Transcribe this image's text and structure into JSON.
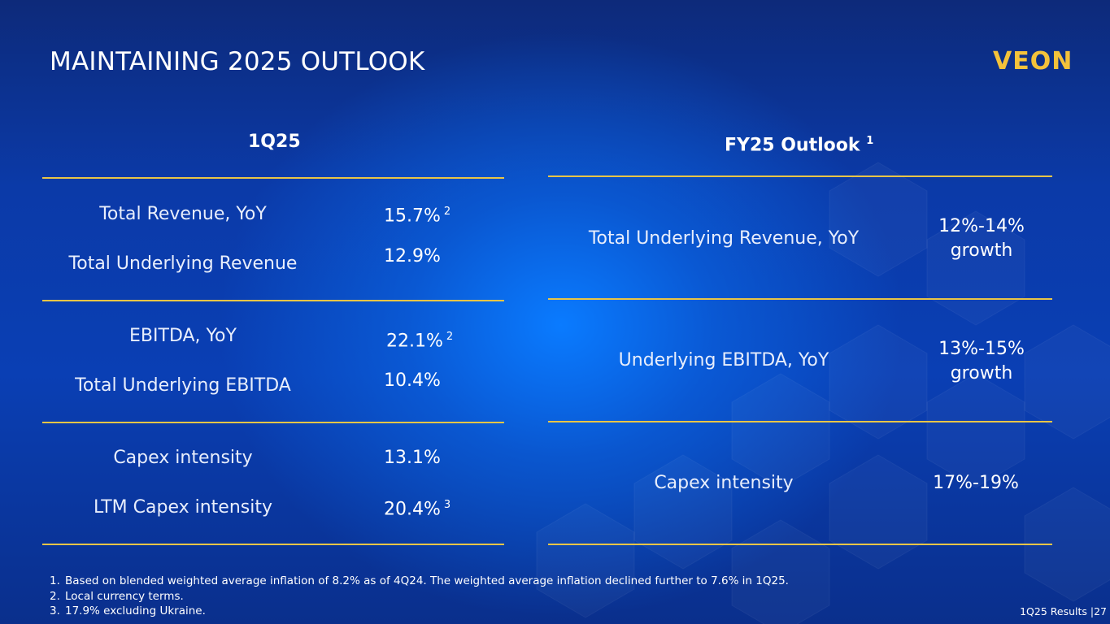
{
  "title": "MAINTAINING 2025 OUTLOOK",
  "logo_text": "VEON",
  "colors": {
    "accent_gold": "#e8c547",
    "logo_gold": "#f4c23a",
    "background_blue": "#0b3aa8"
  },
  "left": {
    "header": "1Q25",
    "groups": [
      {
        "rows": [
          {
            "label": "Total Revenue, YoY",
            "value": "15.7%",
            "note": "2"
          },
          {
            "label": "Total Underlying Revenue",
            "value": "12.9%",
            "note": ""
          }
        ]
      },
      {
        "rows": [
          {
            "label": "EBITDA, YoY",
            "value": "22.1%",
            "note": "2"
          },
          {
            "label": "Total Underlying EBITDA",
            "value": "10.4%",
            "note": ""
          }
        ]
      },
      {
        "rows": [
          {
            "label": "Capex intensity",
            "value": "13.1%",
            "note": ""
          },
          {
            "label": "LTM Capex intensity",
            "value": "20.4%",
            "note": "3"
          }
        ]
      }
    ]
  },
  "right": {
    "header": "FY25 Outlook",
    "header_note": "1",
    "rows": [
      {
        "label": "Total Underlying Revenue, YoY",
        "value_line1": "12%-14%",
        "value_line2": "growth"
      },
      {
        "label": "Underlying EBITDA, YoY",
        "value_line1": "13%-15%",
        "value_line2": "growth"
      },
      {
        "label": "Capex intensity",
        "value_line1": "17%-19%",
        "value_line2": ""
      }
    ]
  },
  "footnotes": [
    {
      "num": "1.",
      "text": "Based on blended weighted average inflation of 8.2% as of 4Q24. The weighted average inflation declined further to 7.6% in 1Q25."
    },
    {
      "num": "2.",
      "text": "Local currency terms."
    },
    {
      "num": "3.",
      "text": "17.9% excluding Ukraine."
    }
  ],
  "page_ref": "1Q25 Results |27"
}
